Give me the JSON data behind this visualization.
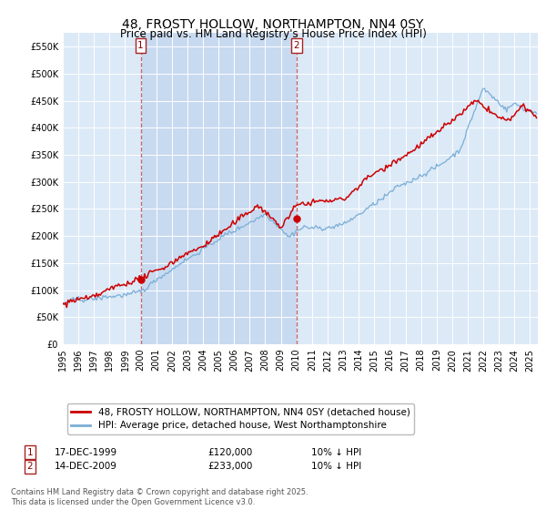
{
  "title": "48, FROSTY HOLLOW, NORTHAMPTON, NN4 0SY",
  "subtitle": "Price paid vs. HM Land Registry's House Price Index (HPI)",
  "ylim": [
    0,
    575000
  ],
  "yticks": [
    0,
    50000,
    100000,
    150000,
    200000,
    250000,
    300000,
    350000,
    400000,
    450000,
    500000,
    550000
  ],
  "plot_bg_color": "#dce9f7",
  "shaded_region_color": "#c8daf0",
  "line1_color": "#cc0000",
  "line2_color": "#7aaed6",
  "vline_color": "#cc6666",
  "transaction1_date": "17-DEC-1999",
  "transaction1_price": 120000,
  "transaction1_label": "10% ↓ HPI",
  "transaction2_date": "14-DEC-2009",
  "transaction2_price": 233000,
  "transaction2_label": "10% ↓ HPI",
  "legend_label1": "48, FROSTY HOLLOW, NORTHAMPTON, NN4 0SY (detached house)",
  "legend_label2": "HPI: Average price, detached house, West Northamptonshire",
  "footer": "Contains HM Land Registry data © Crown copyright and database right 2025.\nThis data is licensed under the Open Government Licence v3.0.",
  "vline1_x": 2000.0,
  "vline2_x": 2010.0,
  "marker1_x": 2000.0,
  "marker1_y": 120000,
  "marker2_x": 2010.0,
  "marker2_y": 233000,
  "xlim_left": 1995.0,
  "xlim_right": 2025.5
}
